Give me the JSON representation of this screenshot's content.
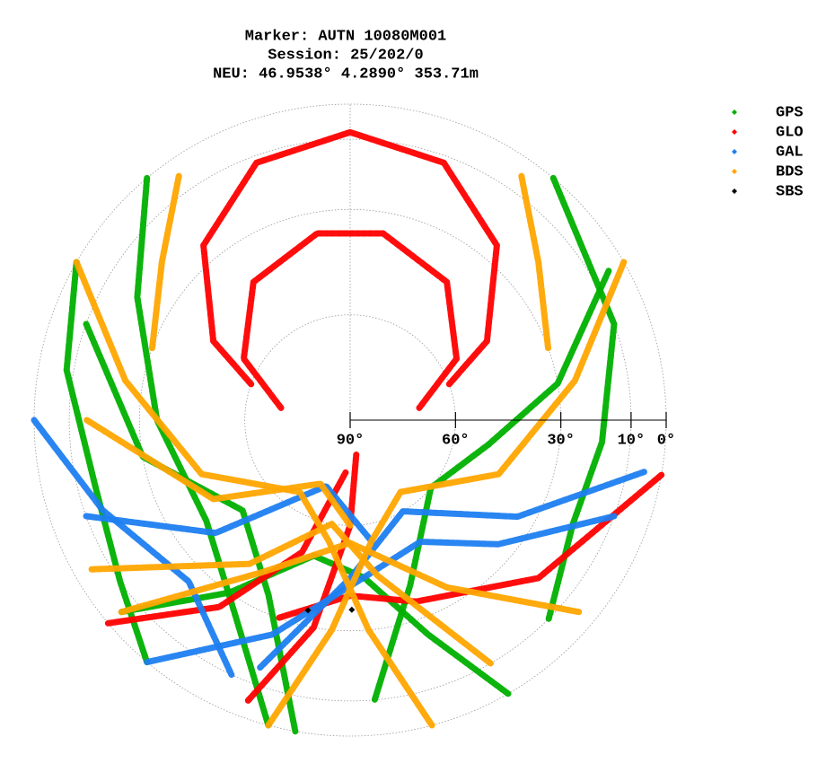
{
  "chart_data": {
    "type": "skyplot",
    "title": [
      "Marker: AUTN 10080M001",
      "Session: 25/202/0",
      "NEU: 46.9538° 4.2890° 353.71m"
    ],
    "rlim": [
      90,
      0
    ],
    "rticks": [
      {
        "value": 90,
        "label": "90°"
      },
      {
        "value": 60,
        "label": "60°"
      },
      {
        "value": 30,
        "label": "30°"
      },
      {
        "value": 10,
        "label": "10°"
      },
      {
        "value": 0,
        "label": "0°"
      }
    ],
    "grid": true,
    "legend": "upper right",
    "series": [
      {
        "name": "GPS",
        "color": "#00b000",
        "tracks": [
          {
            "az": [
              320,
              300,
              270,
              235,
              210,
              195
            ],
            "el": [
              0,
              20,
              35,
              40,
              25,
              0
            ]
          },
          {
            "az": [
              150,
              160,
              175,
              195,
              215,
              230
            ],
            "el": [
              0,
              25,
              45,
              50,
              30,
              5
            ]
          },
          {
            "az": [
              60,
              80,
              100,
              130,
              160,
              175
            ],
            "el": [
              5,
              30,
              50,
              60,
              40,
              10
            ]
          },
          {
            "az": [
              290,
              260,
              230,
              205,
              190
            ],
            "el": [
              10,
              30,
              50,
              35,
              0
            ]
          },
          {
            "az": [
              40,
              70,
              95,
              115,
              135
            ],
            "el": [
              0,
              10,
              18,
              20,
              10
            ]
          },
          {
            "az": [
              300,
              280,
              255,
              235,
              220
            ],
            "el": [
              0,
              8,
              15,
              10,
              0
            ]
          }
        ]
      },
      {
        "name": "GLO",
        "color": "#ff0000",
        "tracks": [
          {
            "az": [
              290,
              300,
              320,
              340,
              0,
              20,
              40,
              60,
              70
            ],
            "el": [
              60,
              45,
              25,
              12,
              8,
              12,
              25,
              45,
              60
            ]
          },
          {
            "az": [
              280,
              300,
              325,
              350,
              10,
              35,
              60,
              80
            ],
            "el": [
              70,
              55,
              42,
              36,
              36,
              42,
              55,
              70
            ]
          },
          {
            "az": [
              200,
              190,
              180,
              170
            ],
            "el": [
              5,
              30,
              60,
              80
            ]
          },
          {
            "az": [
              100,
              130,
              160,
              180,
              200
            ],
            "el": [
              0,
              20,
              35,
              40,
              30
            ]
          },
          {
            "az": [
              230,
              215,
              200,
              185
            ],
            "el": [
              0,
              25,
              50,
              75
            ]
          }
        ]
      },
      {
        "name": "GAL",
        "color": "#1e7ef0",
        "tracks": [
          {
            "az": [
              220,
              200,
              175,
              150,
              130,
              110
            ],
            "el": [
              0,
              25,
              45,
              50,
              35,
              10
            ]
          },
          {
            "az": [
              250,
              230,
              200,
              170
            ],
            "el": [
              10,
              40,
              70,
              55
            ]
          },
          {
            "az": [
              100,
              120,
              150,
              180,
              200
            ],
            "el": [
              5,
              35,
              60,
              45,
              15
            ]
          },
          {
            "az": [
              270,
              250,
              225,
              205
            ],
            "el": [
              0,
              15,
              25,
              10
            ]
          }
        ]
      },
      {
        "name": "BDS",
        "color": "#ffa500",
        "tracks": [
          {
            "az": [
              300,
              280,
              250,
              215,
              190,
              175,
              165
            ],
            "el": [
              0,
              25,
              45,
              65,
              55,
              30,
              0
            ]
          },
          {
            "az": [
              60,
              80,
              110,
              145,
              170,
              185,
              195
            ],
            "el": [
              0,
              25,
              45,
              65,
              55,
              30,
              0
            ]
          },
          {
            "az": [
              290,
              310,
              325
            ],
            "el": [
              30,
              20,
              5
            ]
          },
          {
            "az": [
              70,
              50,
              35
            ],
            "el": [
              30,
              20,
              5
            ]
          },
          {
            "az": [
              240,
              215,
              190,
              170,
              150
            ],
            "el": [
              5,
              40,
              60,
              45,
              10
            ]
          },
          {
            "az": [
              130,
              150,
              180,
              210,
              230
            ],
            "el": [
              5,
              35,
              55,
              40,
              5
            ]
          },
          {
            "az": [
              270,
              240,
              205,
              180
            ],
            "el": [
              15,
              45,
              70,
              60
            ]
          }
        ]
      },
      {
        "name": "SBS",
        "color": "#000000",
        "points": [
          {
            "az": 192.5,
            "el": 34.5
          },
          {
            "az": 179.5,
            "el": 36
          }
        ]
      }
    ]
  }
}
